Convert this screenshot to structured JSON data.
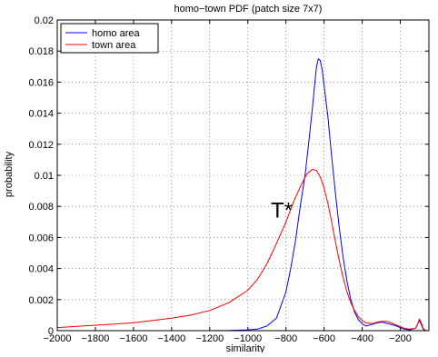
{
  "chart_data": {
    "type": "line",
    "title": "homo−town PDF (patch size 7x7)",
    "xlabel": "similarity",
    "ylabel": "probability",
    "xlim": [
      -2000,
      -50
    ],
    "ylim": [
      0,
      0.02
    ],
    "xticks": [
      -2000,
      -1800,
      -1600,
      -1400,
      -1200,
      -1000,
      -800,
      -600,
      -400,
      -200
    ],
    "xtick_labels": [
      "−2000",
      "−1800",
      "−1600",
      "−1400",
      "−1200",
      "−1000",
      "−800",
      "−600",
      "−400",
      "−200"
    ],
    "yticks": [
      0,
      0.002,
      0.004,
      0.006,
      0.008,
      0.01,
      0.012,
      0.014,
      0.016,
      0.018,
      0.02
    ],
    "ytick_labels": [
      "0",
      "0.002",
      "0.004",
      "0.006",
      "0.008",
      "0.01",
      "0.012",
      "0.014",
      "0.016",
      "0.018",
      "0.02"
    ],
    "grid": true,
    "legend_position": "top-left",
    "series": [
      {
        "name": "homo area",
        "color": "#0000ff",
        "x": [
          -2000,
          -1200,
          -1100,
          -1000,
          -950,
          -900,
          -850,
          -800,
          -775,
          -750,
          -725,
          -700,
          -680,
          -660,
          -650,
          -640,
          -630,
          -620,
          -610,
          -600,
          -580,
          -560,
          -540,
          -520,
          -500,
          -480,
          -460,
          -440,
          -420,
          -400,
          -380,
          -350,
          -320,
          -300,
          -280,
          -250,
          -220,
          -200,
          -180,
          -150,
          -120,
          -110,
          -100,
          -90,
          -80,
          -70,
          -60
        ],
        "y": [
          0,
          0,
          1e-05,
          5e-05,
          0.0001,
          0.0003,
          0.0008,
          0.0025,
          0.004,
          0.0058,
          0.008,
          0.01,
          0.0122,
          0.0145,
          0.0158,
          0.017,
          0.0175,
          0.0174,
          0.0168,
          0.0158,
          0.0138,
          0.0112,
          0.0088,
          0.0066,
          0.0047,
          0.0032,
          0.002,
          0.0012,
          0.0007,
          0.00045,
          0.0003,
          0.0004,
          0.0005,
          0.00055,
          0.0005,
          0.0004,
          0.0003,
          0.0002,
          0.0001,
          5e-05,
          0.00015,
          0.0004,
          0.00065,
          0.0004,
          0.0001,
          2e-05,
          0
        ]
      },
      {
        "name": "town area",
        "color": "#ff0000",
        "x": [
          -2000,
          -1800,
          -1600,
          -1400,
          -1300,
          -1200,
          -1100,
          -1000,
          -950,
          -900,
          -850,
          -800,
          -760,
          -720,
          -690,
          -660,
          -640,
          -620,
          -600,
          -580,
          -560,
          -540,
          -520,
          -500,
          -480,
          -460,
          -440,
          -420,
          -400,
          -380,
          -350,
          -320,
          -300,
          -270,
          -250,
          -220,
          -200,
          -180,
          -150,
          -120,
          -110,
          -100,
          -90,
          -80,
          -70,
          -60
        ],
        "y": [
          0.0002,
          0.00035,
          0.0005,
          0.0008,
          0.001,
          0.0013,
          0.0018,
          0.0026,
          0.0033,
          0.0043,
          0.0056,
          0.007,
          0.0083,
          0.0094,
          0.0101,
          0.0104,
          0.0103,
          0.0099,
          0.0092,
          0.0082,
          0.007,
          0.0057,
          0.0045,
          0.0034,
          0.0025,
          0.0018,
          0.0013,
          0.0009,
          0.00065,
          0.0005,
          0.00045,
          0.00055,
          0.0006,
          0.0006,
          0.0005,
          0.00035,
          0.00025,
          0.00015,
          0.0001,
          0.00015,
          0.0004,
          0.00075,
          0.0005,
          0.00015,
          3e-05,
          0
        ]
      }
    ],
    "annotations": [
      {
        "text": "T*",
        "x": -765,
        "y": 0.0078
      }
    ]
  }
}
